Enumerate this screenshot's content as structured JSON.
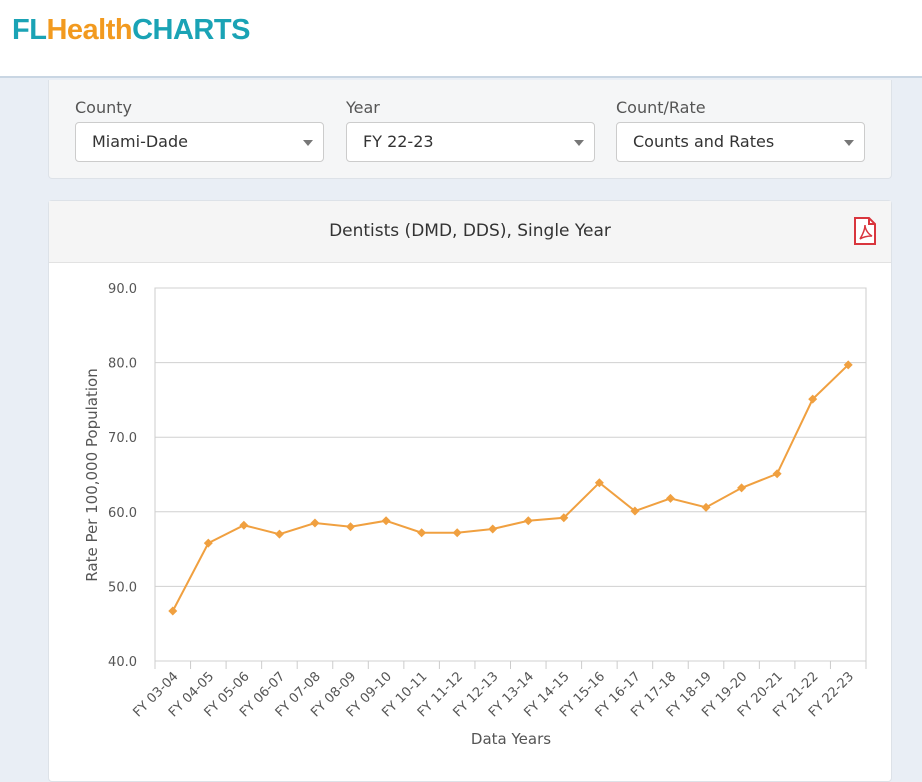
{
  "header": {
    "logo": [
      "FL",
      "Health",
      "CHARTS"
    ]
  },
  "filters": [
    {
      "label": "County",
      "value": "Miami-Dade"
    },
    {
      "label": "Year",
      "value": "FY 22-23"
    },
    {
      "label": "Count/Rate",
      "value": "Counts and Rates"
    }
  ],
  "chart_data": {
    "type": "line",
    "title": "Dentists (DMD, DDS), Single Year",
    "x_label": "Data Years",
    "y_label": "Rate Per 100,000 Population",
    "categories": [
      "FY 03-04",
      "FY 04-05",
      "FY 05-06",
      "FY 06-07",
      "FY 07-08",
      "FY 08-09",
      "FY 09-10",
      "FY 10-11",
      "FY 11-12",
      "FY 12-13",
      "FY 13-14",
      "FY 14-15",
      "FY 15-16",
      "FY 16-17",
      "FY 17-18",
      "FY 18-19",
      "FY 19-20",
      "FY 20-21",
      "FY 21-22",
      "FY 22-23"
    ],
    "values": [
      46.7,
      55.8,
      58.2,
      57.0,
      58.5,
      58.0,
      58.8,
      57.2,
      57.2,
      57.7,
      58.8,
      59.2,
      63.9,
      60.1,
      61.8,
      60.6,
      63.2,
      65.1,
      75.1,
      79.7
    ],
    "color": "#f0a040",
    "ylim": [
      40,
      90
    ],
    "yticks": [
      {
        "value": 40,
        "label": "40.0"
      },
      {
        "value": 50,
        "label": "50.0"
      },
      {
        "value": 60,
        "label": "60.0"
      },
      {
        "value": 70,
        "label": "70.0"
      },
      {
        "value": 80,
        "label": "80.0"
      },
      {
        "value": 90,
        "label": "90.0"
      }
    ],
    "grid": true
  }
}
